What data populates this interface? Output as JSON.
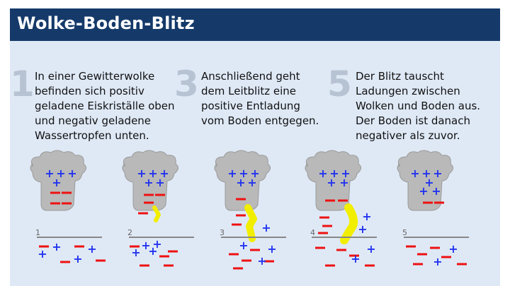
{
  "header": {
    "title": "Wolke-Boden-Blitz"
  },
  "steps": [
    {
      "number": "1",
      "text": "In einer Gewitterwolke\nbefinden sich positiv\ngeladene Eiskriställe oben\nund negativ geladene\nWassertropfen unten."
    },
    {
      "number": "3",
      "text": "Anschließend geht\ndem Leitblitz eine\npositive Entladung\nvom Boden entgegen."
    },
    {
      "number": "5",
      "text": "Der Blitz tauscht\nLadungen zwischen\nWolken und Boden aus.\nDer Boden ist danach\nnegativer als zuvor."
    }
  ],
  "stages": [
    "1",
    "2",
    "3",
    "4",
    "5"
  ],
  "colors": {
    "header_bg": "#153a6a",
    "panel_bg": "#dfe9f6",
    "cloud": "#b9b9b9",
    "positive": "#2233ee",
    "negative": "#ee1111",
    "lightning": "#f2ee00",
    "ground_line": "#888888"
  },
  "symbols": {
    "plus": "+",
    "minus": "−"
  }
}
